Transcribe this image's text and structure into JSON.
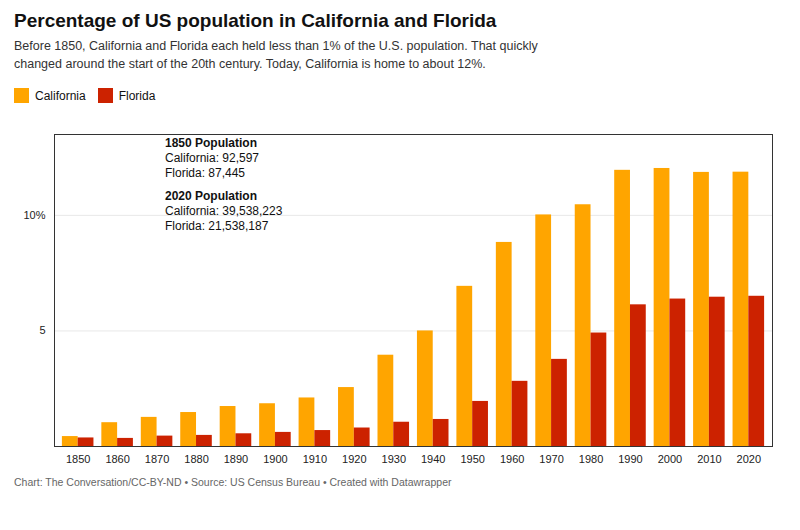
{
  "chart_data": {
    "type": "bar",
    "title": "Percentage of US population in California and Florida",
    "subtitle": "Before 1850, California and Florida each held less than 1% of the U.S. population. That quickly\nchanged around the start of the 20th century. Today, California is home to about 12%.",
    "footnote": "Chart: The Conversation/CC-BY-ND • Source: US Census Bureau • Created with Datawrapper",
    "categories": [
      "1850",
      "1860",
      "1870",
      "1880",
      "1890",
      "1900",
      "1910",
      "1920",
      "1930",
      "1940",
      "1950",
      "1960",
      "1970",
      "1980",
      "1990",
      "2000",
      "2010",
      "2020"
    ],
    "series": [
      {
        "name": "California",
        "color": "#FFA500",
        "values": [
          0.43,
          1.03,
          1.26,
          1.47,
          1.73,
          1.85,
          2.1,
          2.55,
          3.95,
          5.0,
          6.93,
          8.83,
          10.02,
          10.46,
          11.95,
          12.03,
          11.86,
          11.87
        ]
      },
      {
        "name": "Florida",
        "color": "#CC2200",
        "values": [
          0.37,
          0.35,
          0.45,
          0.48,
          0.55,
          0.61,
          0.69,
          0.8,
          1.05,
          1.17,
          1.95,
          2.82,
          3.77,
          4.91,
          6.13,
          6.38,
          6.46,
          6.5
        ]
      }
    ],
    "ylim": [
      0,
      13.5
    ],
    "yticks": [
      5,
      {
        "value": 10,
        "label": "10%"
      }
    ],
    "grid": true,
    "legend": "upper left",
    "annotations": [
      [
        "1850 Population",
        "California: 92,597",
        "Florida: 87,445"
      ],
      [
        "2020 Population",
        "California: 39,538,223",
        "Florida: 21,538,187"
      ]
    ]
  }
}
